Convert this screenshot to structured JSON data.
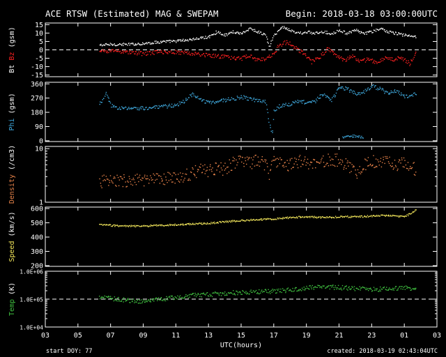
{
  "header": {
    "title": "ACE RTSW (Estimated) MAG & SWEPAM",
    "begin": "Begin: 2018-03-18 03:00:00UTC"
  },
  "footer": {
    "xlabel": "UTC(hours)",
    "start_doy": "start DOY:  77",
    "created": "created: 2018-03-19 02:43:04UTC"
  },
  "colors": {
    "background": "#000000",
    "axes": "#ffffff",
    "bt": "#ffffff",
    "bz": "#ff2020",
    "phi": "#3fa8dc",
    "density": "#e8834a",
    "speed": "#f0e45a",
    "temp": "#40c040"
  },
  "chart_data": {
    "type": "scatter",
    "x_ticks": [
      "03",
      "05",
      "07",
      "09",
      "11",
      "13",
      "15",
      "17",
      "19",
      "21",
      "23",
      "01",
      "03"
    ],
    "x_range_hours": [
      0,
      24
    ],
    "panels": [
      {
        "id": "mag",
        "ylabel_parts": [
          {
            "text": "Bt",
            "color": "#ffffff"
          },
          {
            "text": " Bz",
            "color": "#ff2020"
          },
          {
            "text": " (gsm)",
            "color": "#ffffff"
          }
        ],
        "scale": "linear",
        "ylim": [
          -16,
          16
        ],
        "yticks": [
          {
            "v": 15,
            "l": "15"
          },
          {
            "v": 10,
            "l": "10"
          },
          {
            "v": 5,
            "l": "5"
          },
          {
            "v": 0,
            "l": "0"
          },
          {
            "v": -5,
            "l": "-5"
          },
          {
            "v": -10,
            "l": "-10"
          },
          {
            "v": -15,
            "l": "-15"
          }
        ],
        "dashed_ref": 0,
        "series": [
          {
            "name": "Bt",
            "color": "#ffffff",
            "noise": 0.8,
            "points": [
              [
                3.3,
                3
              ],
              [
                4,
                3.5
              ],
              [
                5,
                3.5
              ],
              [
                6,
                4
              ],
              [
                7,
                5
              ],
              [
                8,
                5.5
              ],
              [
                9,
                6.5
              ],
              [
                10,
                8
              ],
              [
                10.5,
                11
              ],
              [
                11,
                9
              ],
              [
                11.5,
                11
              ],
              [
                12,
                10
              ],
              [
                12.5,
                13
              ],
              [
                13,
                11
              ],
              [
                13.5,
                9
              ],
              [
                13.7,
                2
              ],
              [
                14,
                9
              ],
              [
                14.5,
                14
              ],
              [
                15,
                12
              ],
              [
                15.5,
                10
              ],
              [
                16,
                11
              ],
              [
                16.5,
                10
              ],
              [
                17,
                11
              ],
              [
                17.5,
                10
              ],
              [
                18,
                12
              ],
              [
                18.5,
                10
              ],
              [
                19,
                12
              ],
              [
                19.5,
                10
              ],
              [
                20,
                11
              ],
              [
                20.5,
                13
              ],
              [
                21,
                11
              ],
              [
                21.5,
                10
              ],
              [
                22,
                9
              ],
              [
                22.7,
                8
              ]
            ]
          },
          {
            "name": "Bz",
            "color": "#ff2020",
            "noise": 1.2,
            "points": [
              [
                3.3,
                -1
              ],
              [
                4,
                0
              ],
              [
                5,
                -1
              ],
              [
                6,
                -2
              ],
              [
                7,
                -1
              ],
              [
                8,
                -1
              ],
              [
                9,
                -2
              ],
              [
                10,
                -3
              ],
              [
                11,
                -4
              ],
              [
                12,
                -5
              ],
              [
                12.5,
                -3
              ],
              [
                13,
                -6
              ],
              [
                13.5,
                -5
              ],
              [
                14,
                -2
              ],
              [
                14.3,
                3
              ],
              [
                14.8,
                5
              ],
              [
                15.3,
                2
              ],
              [
                15.8,
                -2
              ],
              [
                16.3,
                -7
              ],
              [
                16.8,
                -4
              ],
              [
                17.3,
                1
              ],
              [
                17.8,
                -3
              ],
              [
                18.3,
                -6
              ],
              [
                18.8,
                -3
              ],
              [
                19.3,
                -7
              ],
              [
                19.8,
                -5
              ],
              [
                20.3,
                -8
              ],
              [
                20.8,
                -4
              ],
              [
                21.3,
                -6
              ],
              [
                21.8,
                -4
              ],
              [
                22.3,
                -8
              ],
              [
                22.7,
                -2
              ]
            ]
          }
        ]
      },
      {
        "id": "phi",
        "ylabel_parts": [
          {
            "text": "Phi",
            "color": "#3fa8dc"
          },
          {
            "text": " (gsm)",
            "color": "#ffffff"
          }
        ],
        "scale": "linear",
        "ylim": [
          -5,
          370
        ],
        "yticks": [
          {
            "v": 360,
            "l": "360"
          },
          {
            "v": 270,
            "l": "270"
          },
          {
            "v": 180,
            "l": "180"
          },
          {
            "v": 90,
            "l": "90"
          },
          {
            "v": 0,
            "l": "0"
          }
        ],
        "series": [
          {
            "name": "Phi",
            "color": "#3fa8dc",
            "noise": 12,
            "points": [
              [
                3.3,
                230
              ],
              [
                3.7,
                300
              ],
              [
                4,
                225
              ],
              [
                4.5,
                210
              ],
              [
                5,
                205
              ],
              [
                6,
                210
              ],
              [
                7,
                215
              ],
              [
                8,
                230
              ],
              [
                8.5,
                250
              ],
              [
                9,
                300
              ],
              [
                9.5,
                260
              ],
              [
                10,
                245
              ],
              [
                11,
                260
              ],
              [
                12,
                280
              ],
              [
                12.5,
                265
              ],
              [
                13,
                260
              ],
              [
                13.5,
                250
              ],
              [
                13.7,
                120
              ],
              [
                13.9,
                40
              ],
              [
                14,
                200
              ],
              [
                14.5,
                230
              ],
              [
                15,
                235
              ],
              [
                15.5,
                250
              ],
              [
                16,
                245
              ],
              [
                16.5,
                250
              ],
              [
                17,
                300
              ],
              [
                17.5,
                260
              ],
              [
                18,
                340
              ],
              [
                18.5,
                330
              ],
              [
                19,
                300
              ],
              [
                19.5,
                310
              ],
              [
                20,
                350
              ],
              [
                20.5,
                330
              ],
              [
                21,
                300
              ],
              [
                21.5,
                320
              ],
              [
                22,
                280
              ],
              [
                22.7,
                300
              ]
            ]
          },
          {
            "name": "Phi-low",
            "color": "#3fa8dc",
            "noise": 8,
            "points": [
              [
                18.2,
                25
              ],
              [
                18.6,
                35
              ],
              [
                19,
                30
              ],
              [
                19.5,
                25
              ]
            ]
          }
        ]
      },
      {
        "id": "density",
        "ylabel_parts": [
          {
            "text": "Density",
            "color": "#e8834a"
          },
          {
            "text": " (/cm3)",
            "color": "#ffffff"
          }
        ],
        "scale": "log",
        "ylim": [
          1,
          11
        ],
        "yticks": [
          {
            "v": 10,
            "l": "10"
          },
          {
            "v": 1,
            "l": "1"
          }
        ],
        "series": [
          {
            "name": "Density",
            "color": "#e8834a",
            "noise": 0.12,
            "points": [
              [
                3.3,
                2.5
              ],
              [
                4,
                2.5
              ],
              [
                5,
                2.6
              ],
              [
                6,
                2.6
              ],
              [
                7,
                2.7
              ],
              [
                8,
                2.9
              ],
              [
                9,
                3.5
              ],
              [
                9.5,
                4.2
              ],
              [
                10,
                4
              ],
              [
                10.5,
                4.5
              ],
              [
                11,
                4.2
              ],
              [
                11.5,
                5.5
              ],
              [
                12,
                6.5
              ],
              [
                12.5,
                5.5
              ],
              [
                13,
                6
              ],
              [
                13.5,
                5
              ],
              [
                13.7,
                3.5
              ],
              [
                14,
                6
              ],
              [
                14.5,
                5.5
              ],
              [
                15,
                5
              ],
              [
                15.5,
                6
              ],
              [
                16,
                5.5
              ],
              [
                16.5,
                5
              ],
              [
                17,
                6
              ],
              [
                17.5,
                6.5
              ],
              [
                18,
                6
              ],
              [
                18.5,
                5
              ],
              [
                19,
                3.5
              ],
              [
                19.5,
                5
              ],
              [
                20,
                6
              ],
              [
                20.5,
                5.5
              ],
              [
                21,
                6.5
              ],
              [
                21.5,
                5
              ],
              [
                22,
                6
              ],
              [
                22.7,
                4
              ]
            ]
          }
        ]
      },
      {
        "id": "speed",
        "ylabel_parts": [
          {
            "text": "Speed",
            "color": "#f0e45a"
          },
          {
            "text": " (km/s)",
            "color": "#ffffff"
          }
        ],
        "scale": "linear",
        "ylim": [
          195,
          610
        ],
        "yticks": [
          {
            "v": 600,
            "l": "600"
          },
          {
            "v": 500,
            "l": "500"
          },
          {
            "v": 400,
            "l": "400"
          },
          {
            "v": 300,
            "l": "300"
          },
          {
            "v": 200,
            "l": "200"
          }
        ],
        "series": [
          {
            "name": "Speed",
            "color": "#f0e45a",
            "noise": 6,
            "points": [
              [
                3.3,
                490
              ],
              [
                4,
                485
              ],
              [
                5,
                480
              ],
              [
                6,
                480
              ],
              [
                7,
                485
              ],
              [
                8,
                490
              ],
              [
                9,
                495
              ],
              [
                10,
                500
              ],
              [
                11,
                510
              ],
              [
                12,
                520
              ],
              [
                13,
                525
              ],
              [
                14,
                530
              ],
              [
                15,
                540
              ],
              [
                16,
                545
              ],
              [
                17,
                540
              ],
              [
                18,
                545
              ],
              [
                19,
                545
              ],
              [
                20,
                550
              ],
              [
                21,
                555
              ],
              [
                22,
                545
              ],
              [
                22.4,
                570
              ],
              [
                22.7,
                595
              ]
            ]
          }
        ]
      },
      {
        "id": "temp",
        "ylabel_parts": [
          {
            "text": "Temp",
            "color": "#40c040"
          },
          {
            "text": " (K)",
            "color": "#ffffff"
          }
        ],
        "scale": "log",
        "ylim": [
          10000,
          1000000
        ],
        "yticks": [
          {
            "v": 1000000,
            "l": "1.0E+06"
          },
          {
            "v": 100000,
            "l": "1.0E+05"
          },
          {
            "v": 10000,
            "l": "1.0E+04"
          }
        ],
        "dashed_ref": 100000,
        "series": [
          {
            "name": "Temp",
            "color": "#40c040",
            "noise": 0.08,
            "points": [
              [
                3.3,
                120000
              ],
              [
                4,
                110000
              ],
              [
                5,
                95000
              ],
              [
                6,
                85000
              ],
              [
                7,
                100000
              ],
              [
                8,
                120000
              ],
              [
                9,
                140000
              ],
              [
                10,
                150000
              ],
              [
                11,
                170000
              ],
              [
                12,
                180000
              ],
              [
                13,
                190000
              ],
              [
                14,
                200000
              ],
              [
                15,
                220000
              ],
              [
                16,
                260000
              ],
              [
                17,
                290000
              ],
              [
                18,
                270000
              ],
              [
                19,
                250000
              ],
              [
                20,
                230000
              ],
              [
                21,
                250000
              ],
              [
                22,
                260000
              ],
              [
                22.7,
                250000
              ]
            ]
          }
        ]
      }
    ]
  }
}
